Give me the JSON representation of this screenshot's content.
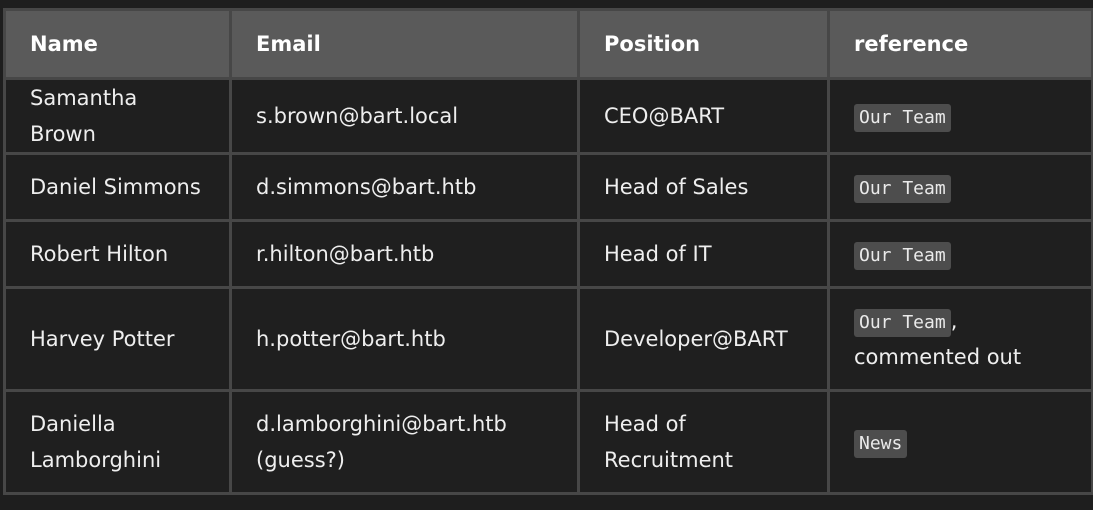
{
  "table": {
    "headers": [
      "Name",
      "Email",
      "Position",
      "reference"
    ],
    "rows": [
      {
        "name": "Samantha Brown",
        "email": "s.brown@bart.local",
        "position": "CEO@BART",
        "reference_code": "Our Team",
        "reference_note": ""
      },
      {
        "name": "Daniel Simmons",
        "email": "d.simmons@bart.htb",
        "position": "Head of Sales",
        "reference_code": "Our Team",
        "reference_note": ""
      },
      {
        "name": "Robert Hilton",
        "email": "r.hilton@bart.htb",
        "position": "Head of IT",
        "reference_code": "Our Team",
        "reference_note": ""
      },
      {
        "name": "Harvey Potter",
        "email": "h.potter@bart.htb",
        "position": "Developer@BART",
        "reference_code": "Our Team",
        "reference_note": ", commented out"
      },
      {
        "name": "Daniella Lamborghini",
        "email": "d.lamborghini@bart.htb (guess?)",
        "position": "Head of Recruitment",
        "reference_code": "News",
        "reference_note": ""
      }
    ]
  }
}
